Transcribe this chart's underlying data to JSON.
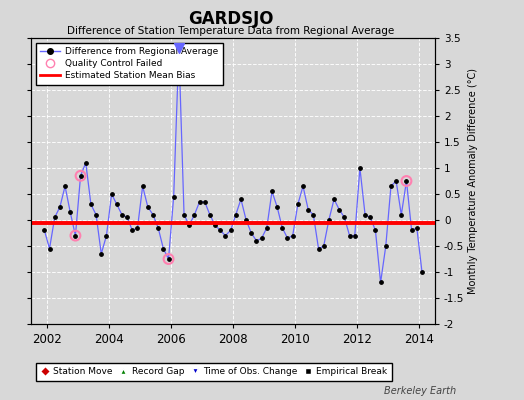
{
  "title": "GARDSJO",
  "subtitle": "Difference of Station Temperature Data from Regional Average",
  "ylabel_right": "Monthly Temperature Anomaly Difference (°C)",
  "bias_value": -0.05,
  "ylim": [
    -2.0,
    3.5
  ],
  "xlim": [
    2001.5,
    2014.5
  ],
  "xticks": [
    2002,
    2004,
    2006,
    2008,
    2010,
    2012,
    2014
  ],
  "yticks": [
    -2.0,
    -1.5,
    -1.0,
    -0.5,
    0.0,
    0.5,
    1.0,
    1.5,
    2.0,
    2.5,
    3.0,
    3.5
  ],
  "background_color": "#d8d8d8",
  "plot_bg_color": "#d8d8d8",
  "line_color": "#6666ff",
  "marker_color": "#000000",
  "bias_color": "#ff0000",
  "qc_fail_color": "#ff80b0",
  "time_series": {
    "times": [
      2001.917,
      2002.083,
      2002.25,
      2002.417,
      2002.583,
      2002.75,
      2002.917,
      2003.083,
      2003.25,
      2003.417,
      2003.583,
      2003.75,
      2003.917,
      2004.083,
      2004.25,
      2004.417,
      2004.583,
      2004.75,
      2004.917,
      2005.083,
      2005.25,
      2005.417,
      2005.583,
      2005.75,
      2005.917,
      2006.083,
      2006.25,
      2006.417,
      2006.583,
      2006.75,
      2006.917,
      2007.083,
      2007.25,
      2007.417,
      2007.583,
      2007.75,
      2007.917,
      2008.083,
      2008.25,
      2008.417,
      2008.583,
      2008.75,
      2008.917,
      2009.083,
      2009.25,
      2009.417,
      2009.583,
      2009.75,
      2009.917,
      2010.083,
      2010.25,
      2010.417,
      2010.583,
      2010.75,
      2010.917,
      2011.083,
      2011.25,
      2011.417,
      2011.583,
      2011.75,
      2011.917,
      2012.083,
      2012.25,
      2012.417,
      2012.583,
      2012.75,
      2012.917,
      2013.083,
      2013.25,
      2013.417,
      2013.583,
      2013.75,
      2013.917,
      2014.083
    ],
    "values": [
      -0.2,
      -0.55,
      0.05,
      0.25,
      0.65,
      0.15,
      -0.3,
      0.85,
      1.1,
      0.3,
      0.1,
      -0.65,
      -0.3,
      0.5,
      0.3,
      0.1,
      0.05,
      -0.2,
      -0.15,
      0.65,
      0.25,
      0.1,
      -0.15,
      -0.55,
      -0.75,
      0.45,
      3.3,
      0.1,
      -0.1,
      0.1,
      0.35,
      0.35,
      0.1,
      -0.1,
      -0.2,
      -0.3,
      -0.2,
      0.1,
      0.4,
      0.0,
      -0.25,
      -0.4,
      -0.35,
      -0.15,
      0.55,
      0.25,
      -0.15,
      -0.35,
      -0.3,
      0.3,
      0.65,
      0.2,
      0.1,
      -0.55,
      -0.5,
      0.0,
      0.4,
      0.2,
      0.05,
      -0.3,
      -0.3,
      1.0,
      0.1,
      0.05,
      -0.2,
      -1.2,
      -0.5,
      0.65,
      0.75,
      0.1,
      0.75,
      -0.2,
      -0.15,
      -1.0
    ]
  },
  "qc_fail_points": [
    {
      "time": 2002.917,
      "value": -0.3
    },
    {
      "time": 2003.083,
      "value": 0.85
    },
    {
      "time": 2005.917,
      "value": -0.75
    },
    {
      "time": 2013.583,
      "value": 0.75
    }
  ],
  "event_markers": {
    "time_of_obs": [
      2006.25
    ],
    "station_move": [],
    "record_gap": [],
    "empirical_break": []
  },
  "legend1_items": [
    {
      "label": "Difference from Regional Average"
    },
    {
      "label": "Quality Control Failed"
    },
    {
      "label": "Estimated Station Mean Bias"
    }
  ],
  "legend2_items": [
    {
      "label": "Station Move",
      "color": "#cc0000",
      "marker": "D"
    },
    {
      "label": "Record Gap",
      "color": "#008000",
      "marker": "^"
    },
    {
      "label": "Time of Obs. Change",
      "color": "#0000cc",
      "marker": "v"
    },
    {
      "label": "Empirical Break",
      "color": "#000000",
      "marker": "s"
    }
  ],
  "watermark": "Berkeley Earth"
}
